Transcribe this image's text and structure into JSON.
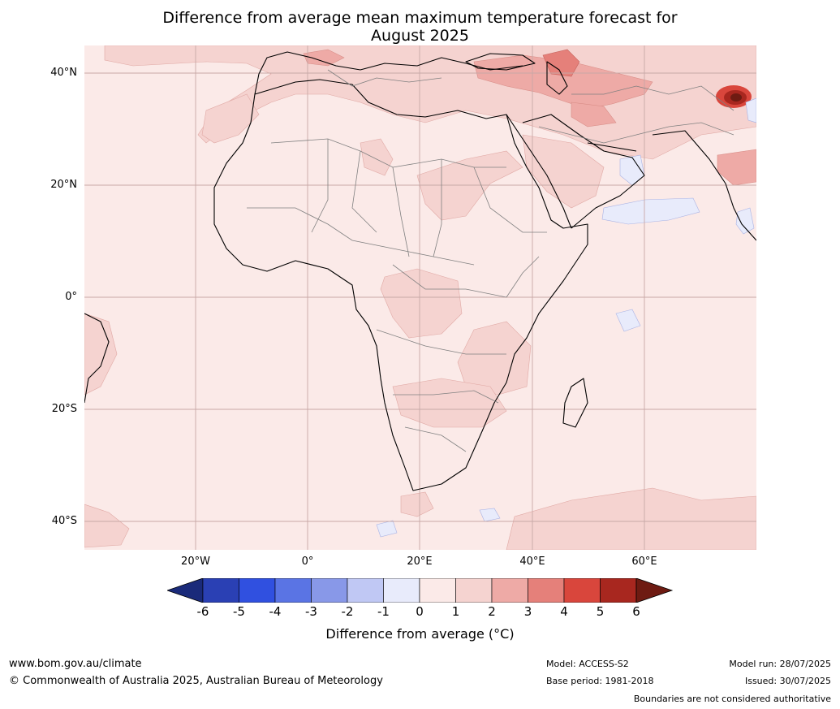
{
  "title_line1": "Difference from average mean maximum temperature forecast for",
  "title_line2": "August 2025",
  "lat_labels": [
    "40°N",
    "20°N",
    "0°",
    "20°S",
    "40°S"
  ],
  "lon_labels": [
    "20°W",
    "0°",
    "20°E",
    "40°E",
    "60°E"
  ],
  "colorbar": {
    "ticks": [
      "-6",
      "-5",
      "-4",
      "-3",
      "-2",
      "-1",
      "0",
      "1",
      "2",
      "3",
      "4",
      "5",
      "6"
    ],
    "label": "Difference from average (°C)",
    "colors": [
      "#1a2a7a",
      "#2a40b4",
      "#3050e0",
      "#5a74e4",
      "#8898e8",
      "#c0c8f4",
      "#e8ebfb",
      "#fbeae8",
      "#f5d3d0",
      "#eeaaa6",
      "#e5807a",
      "#d9463c",
      "#a8271f",
      "#6e1b12"
    ]
  },
  "footer": {
    "website": "www.bom.gov.au/climate",
    "copyright": "© Commonwealth of Australia 2025, Australian Bureau of Meteorology",
    "model": "Model: ACCESS-S2",
    "base_period": "Base period: 1981-2018",
    "model_run": "Model run: 28/07/2025",
    "issued": "Issued: 30/07/2025",
    "disclaimer": "Boundaries are not considered authoritative"
  }
}
